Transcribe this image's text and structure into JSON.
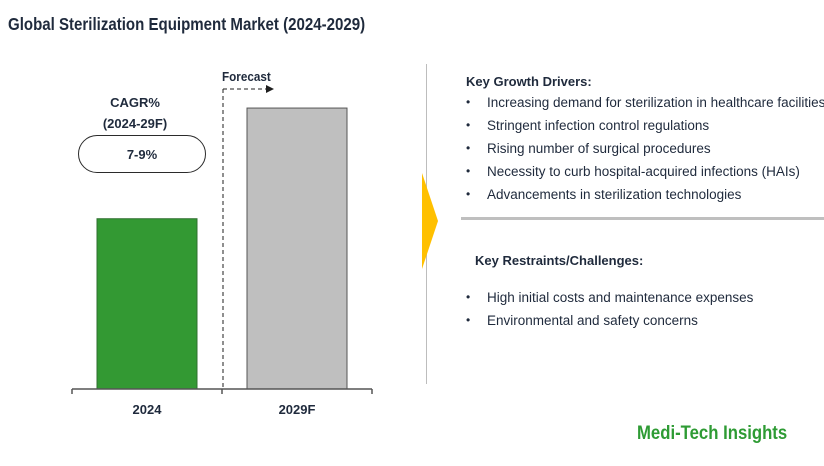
{
  "title": "Global Sterilization Equipment Market (2024-2029)",
  "forecast_label": "Forecast",
  "cagr": {
    "label_line1": "CAGR%",
    "label_line2": "(2024-29F)",
    "value": "7-9%"
  },
  "chart_data": {
    "type": "bar",
    "title": "Global Sterilization Equipment Market (2024-2029)",
    "categories": [
      "2024",
      "2029F"
    ],
    "values": [
      100,
      165
    ],
    "value_units": "relative (unlabeled axis)",
    "colors": [
      "#339933",
      "#bfbfbf"
    ],
    "xlabel": "",
    "ylabel": "",
    "ylim": [
      0,
      185
    ],
    "grid": false,
    "annotations": [
      "Forecast",
      "CAGR% (2024-29F): 7-9%"
    ]
  },
  "drivers": {
    "heading": "Key Growth Drivers:",
    "items": [
      "Increasing demand for sterilization in healthcare facilities",
      "Stringent infection control regulations",
      "Rising number of surgical procedures",
      "Necessity to curb hospital-acquired infections (HAIs)",
      "Advancements in sterilization technologies"
    ]
  },
  "restraints": {
    "heading": "Key Restraints/Challenges:",
    "items": [
      "High initial costs and maintenance expenses",
      "Environmental and safety concerns"
    ]
  },
  "bullet_char": "•",
  "brand": "Medi-Tech Insights",
  "colors": {
    "accent_arrow": "#ffc000",
    "brand_green": "#2e9b34",
    "text_dark": "#1f2a3c"
  }
}
